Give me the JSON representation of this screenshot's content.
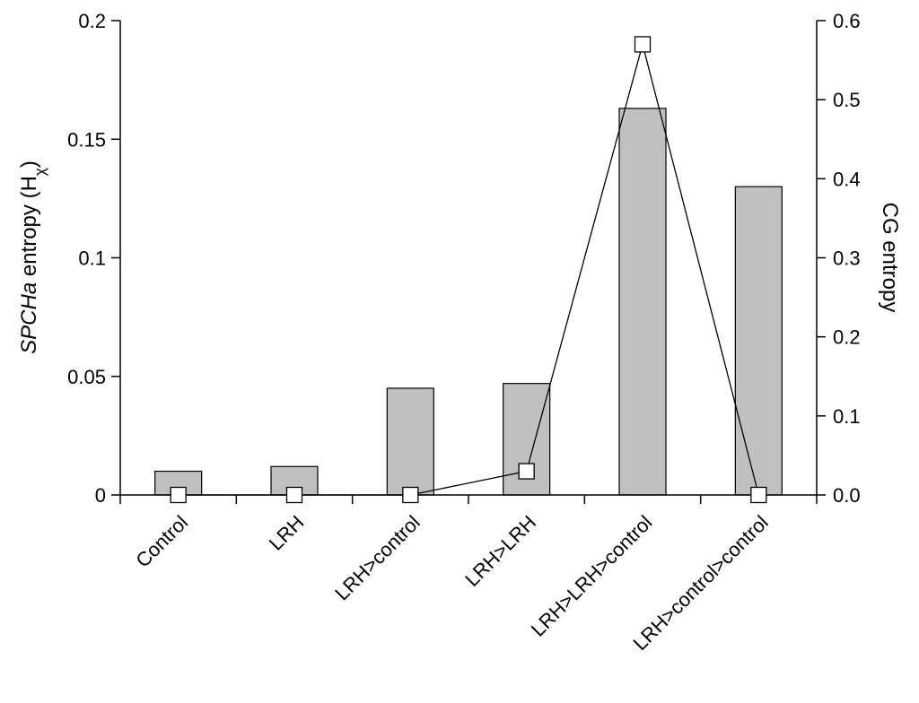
{
  "chart_data": {
    "type": "bar",
    "categories": [
      "Control",
      "LRH",
      "LRH>control",
      "LRH>LRH",
      "LRH>LRH>control",
      "LRH>control>control"
    ],
    "series": [
      {
        "values": [
          0.01,
          0.012,
          0.045,
          0.047,
          0.163,
          0.13
        ],
        "axis": "left",
        "kind": "bar"
      },
      {
        "values": [
          0.0,
          0.0,
          0.0,
          0.03,
          0.57,
          0.0
        ],
        "axis": "right",
        "kind": "line"
      }
    ],
    "y_left": {
      "label_main": "SPCHa entropy (H",
      "label_sub": "χ",
      "label_end": ")",
      "lim": [
        0,
        0.2
      ],
      "ticks": [
        0,
        0.05,
        0.1,
        0.15,
        0.2
      ],
      "tick_labels": [
        "0",
        "0.05",
        "0.1",
        "0.15",
        "0.2"
      ]
    },
    "y_right": {
      "label": "CG entropy",
      "lim": [
        0,
        0.6
      ],
      "ticks": [
        0.0,
        0.1,
        0.2,
        0.3,
        0.4,
        0.5,
        0.6
      ],
      "tick_labels": [
        "0.0",
        "0.1",
        "0.2",
        "0.3",
        "0.4",
        "0.5",
        "0.6"
      ]
    },
    "grid": false,
    "legend": "none",
    "colors": {
      "bar_fill": "#c0c0c0",
      "bar_stroke": "#000000",
      "line": "#000000",
      "marker_fill": "#ffffff"
    }
  }
}
